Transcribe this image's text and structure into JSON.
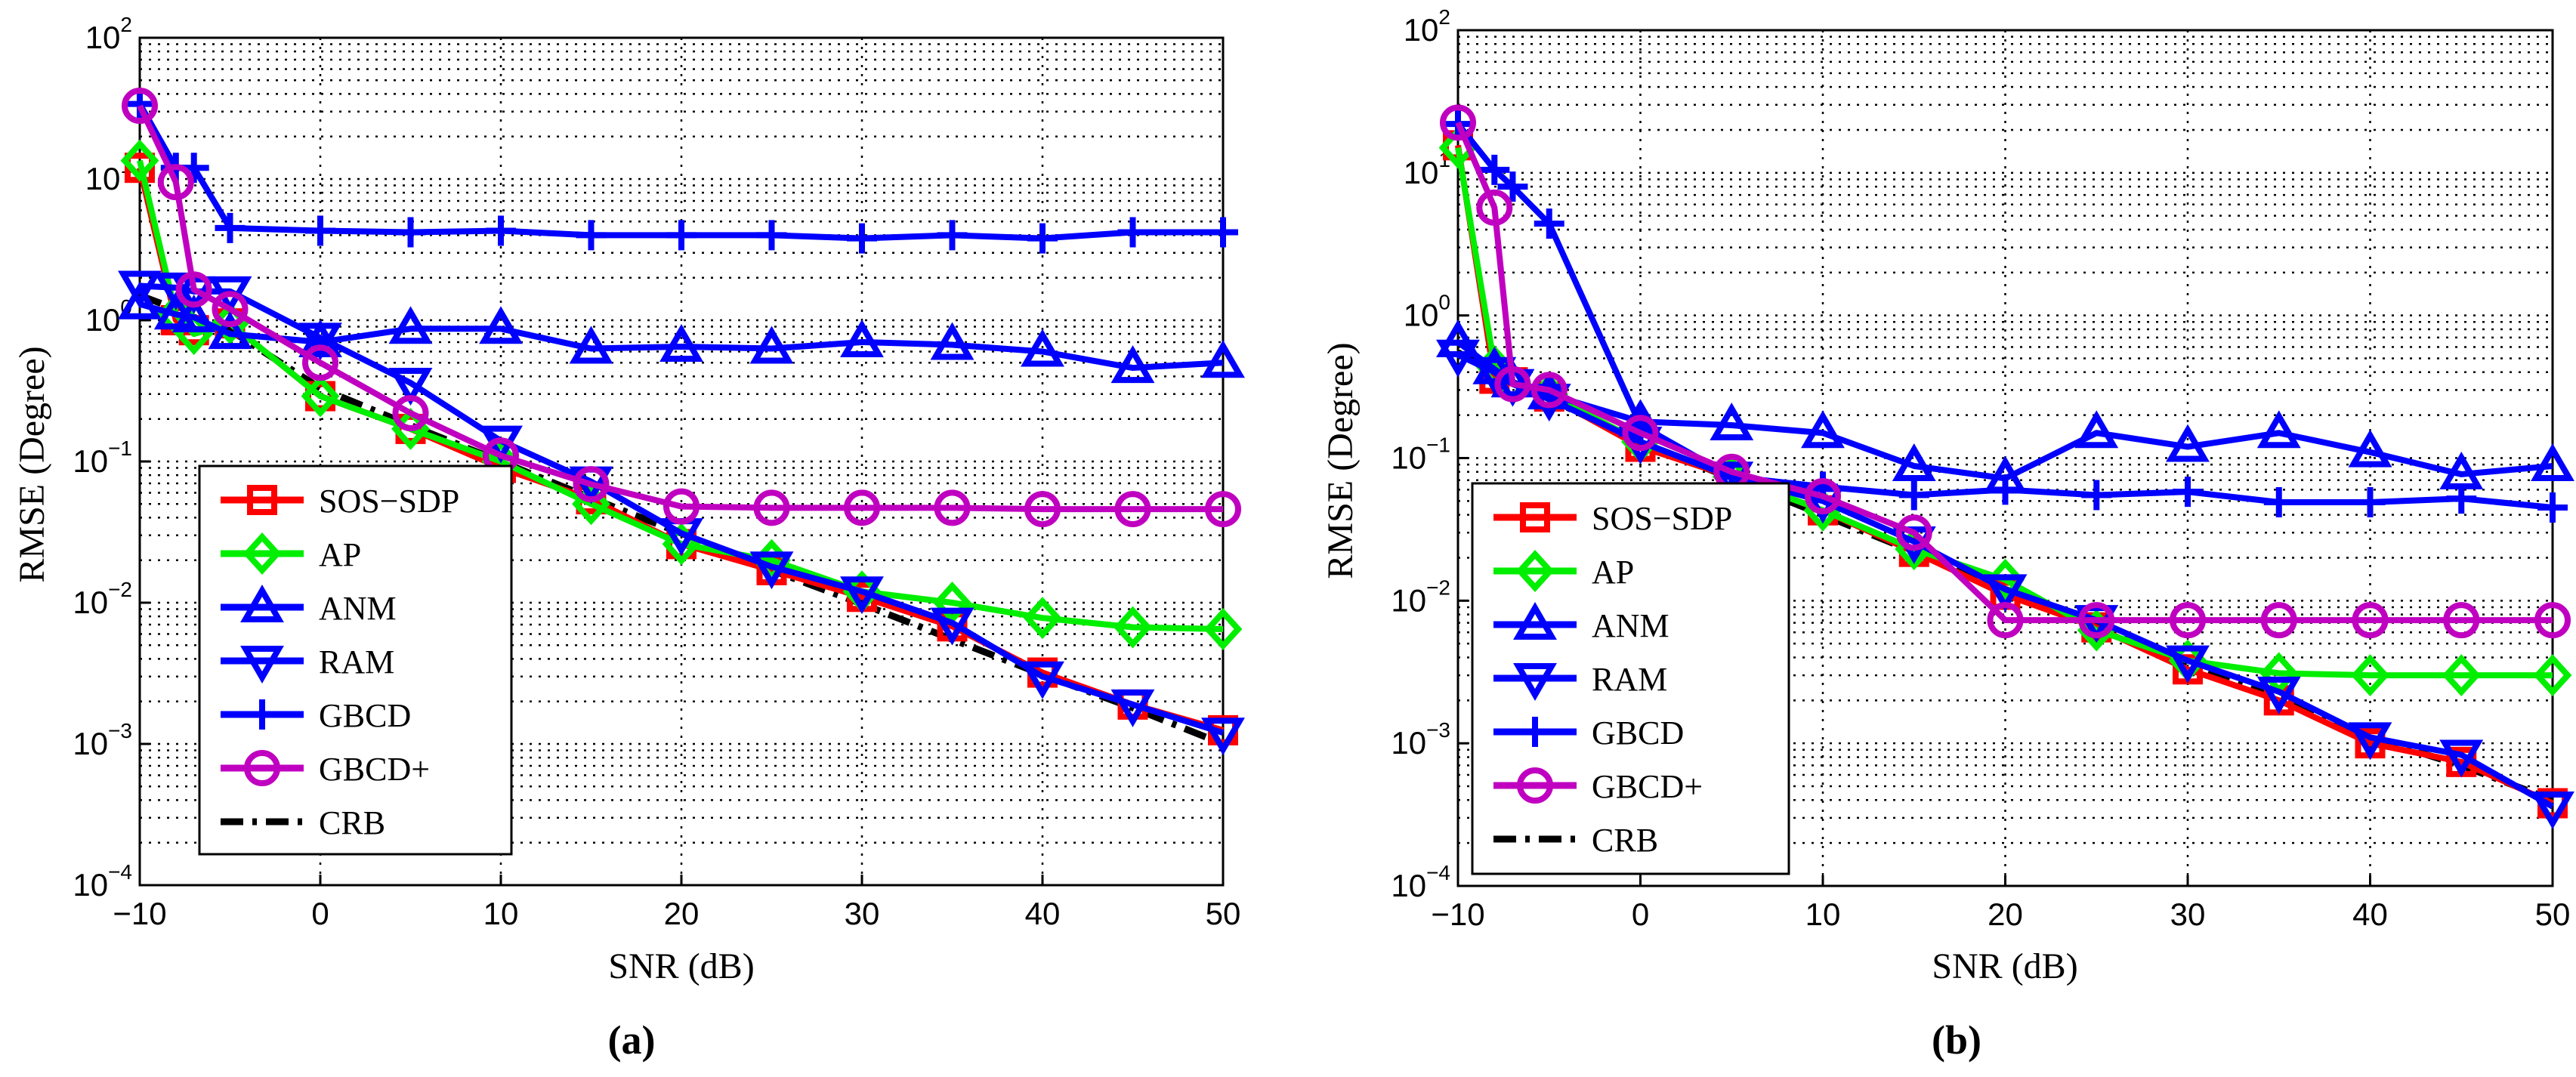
{
  "colors": {
    "SOS-SDP": "#ff0000",
    "AP": "#00ee00",
    "ANM": "#0000ff",
    "RAM": "#0000ff",
    "GBCD": "#0000ff",
    "GBCD+": "#c000c0",
    "CRB": "#000000"
  },
  "chart_data": [
    {
      "type": "line",
      "caption": "(a)",
      "xlabel": "SNR (dB)",
      "ylabel": "RMSE (Degree)",
      "yscale": "log",
      "xlim": [
        -10,
        50
      ],
      "ylim": [
        0.0001,
        100
      ],
      "xticks": [
        -10,
        0,
        10,
        20,
        30,
        40,
        50
      ],
      "yticks_exp": [
        2,
        1,
        0,
        -1,
        -2,
        -3,
        -4
      ],
      "grid": true,
      "legend": "lower-left",
      "x": [
        -10,
        -8,
        -7,
        -5,
        0,
        5,
        10,
        15,
        20,
        25,
        30,
        35,
        40,
        45,
        50
      ],
      "series": [
        {
          "name": "SOS-SDP",
          "marker": "square",
          "values": [
            12,
            1.0,
            0.85,
            0.95,
            0.29,
            0.17,
            0.09,
            0.054,
            0.026,
            0.017,
            0.011,
            0.0068,
            0.0032,
            0.0019,
            0.00125
          ]
        },
        {
          "name": "AP",
          "marker": "diamond",
          "values": [
            13.5,
            1.1,
            0.8,
            0.95,
            0.29,
            0.17,
            0.1,
            0.05,
            0.026,
            0.02,
            0.012,
            0.01,
            0.0078,
            0.0067,
            0.0065
          ]
        },
        {
          "name": "ANM",
          "marker": "triangle-up",
          "values": [
            1.3,
            1.1,
            1.05,
            0.8,
            0.7,
            0.87,
            0.87,
            0.63,
            0.65,
            0.63,
            0.7,
            0.67,
            0.6,
            0.46,
            0.5
          ]
        },
        {
          "name": "RAM",
          "marker": "triangle-down",
          "values": [
            1.75,
            1.7,
            1.6,
            1.6,
            0.75,
            0.36,
            0.14,
            0.072,
            0.031,
            0.018,
            0.012,
            0.0072,
            0.003,
            0.0019,
            0.0012
          ]
        },
        {
          "name": "GBCD",
          "marker": "plus",
          "values": [
            34,
            12,
            12,
            4.5,
            4.3,
            4.2,
            4.3,
            4.0,
            4.0,
            4.0,
            3.8,
            4.0,
            3.8,
            4.2,
            4.2
          ]
        },
        {
          "name": "GBCD+",
          "marker": "circle",
          "values": [
            33,
            9.5,
            1.65,
            1.2,
            0.5,
            0.22,
            0.11,
            0.069,
            0.048,
            0.047,
            0.047,
            0.047,
            0.046,
            0.046,
            0.046
          ]
        },
        {
          "name": "CRB",
          "marker": "none",
          "dash": "dashdot",
          "values": [
            1.5,
            1.2,
            1.05,
            0.85,
            0.33,
            0.18,
            0.1,
            0.055,
            0.031,
            0.017,
            0.0098,
            0.0055,
            0.0031,
            0.0018,
            0.001
          ]
        }
      ]
    },
    {
      "type": "line",
      "caption": "(b)",
      "xlabel": "SNR (dB)",
      "ylabel": "RMSE (Degree)",
      "yscale": "log",
      "xlim": [
        -10,
        50
      ],
      "ylim": [
        0.0001,
        100
      ],
      "xticks": [
        -10,
        0,
        10,
        20,
        30,
        40,
        50
      ],
      "yticks_exp": [
        2,
        1,
        0,
        -1,
        -2,
        -3,
        -4
      ],
      "grid": true,
      "legend": "lower-left",
      "x": [
        -10,
        -8,
        -7,
        -5,
        0,
        5,
        10,
        15,
        20,
        25,
        30,
        35,
        40,
        45,
        50
      ],
      "series": [
        {
          "name": "SOS-SDP",
          "marker": "square",
          "values": [
            15.6,
            0.36,
            0.34,
            0.27,
            0.12,
            0.074,
            0.043,
            0.022,
            0.011,
            0.0065,
            0.0033,
            0.002,
            0.001,
            0.00074,
            0.00038
          ]
        },
        {
          "name": "AP",
          "marker": "diamond",
          "values": [
            15,
            0.44,
            0.33,
            0.28,
            0.13,
            0.074,
            0.043,
            0.023,
            0.014,
            0.0062,
            0.0038,
            0.0031,
            0.003,
            0.003,
            0.003
          ]
        },
        {
          "name": "ANM",
          "marker": "triangle-up",
          "values": [
            0.65,
            0.42,
            0.34,
            0.28,
            0.18,
            0.17,
            0.15,
            0.088,
            0.072,
            0.15,
            0.12,
            0.15,
            0.11,
            0.077,
            0.088
          ]
        },
        {
          "name": "RAM",
          "marker": "triangle-down",
          "values": [
            0.53,
            0.4,
            0.33,
            0.26,
            0.13,
            0.074,
            0.05,
            0.026,
            0.012,
            0.0073,
            0.0038,
            0.0023,
            0.0011,
            0.00083,
            0.00036
          ]
        },
        {
          "name": "GBCD",
          "marker": "plus",
          "values": [
            22,
            10.5,
            8,
            4.4,
            0.17,
            0.074,
            0.063,
            0.055,
            0.06,
            0.055,
            0.058,
            0.049,
            0.049,
            0.052,
            0.045
          ]
        },
        {
          "name": "GBCD+",
          "marker": "circle",
          "values": [
            22.5,
            5.7,
            0.33,
            0.3,
            0.15,
            0.08,
            0.054,
            0.03,
            0.0073,
            0.0073,
            0.0073,
            0.0073,
            0.0073,
            0.0073,
            0.0073
          ]
        },
        {
          "name": "CRB",
          "marker": "none",
          "dash": "dashdot",
          "values": [
            0.55,
            0.4,
            0.34,
            0.26,
            0.13,
            0.072,
            0.04,
            0.022,
            0.012,
            0.0068,
            0.0037,
            0.0021,
            0.0011,
            0.0007,
            0.0004
          ]
        }
      ]
    }
  ]
}
